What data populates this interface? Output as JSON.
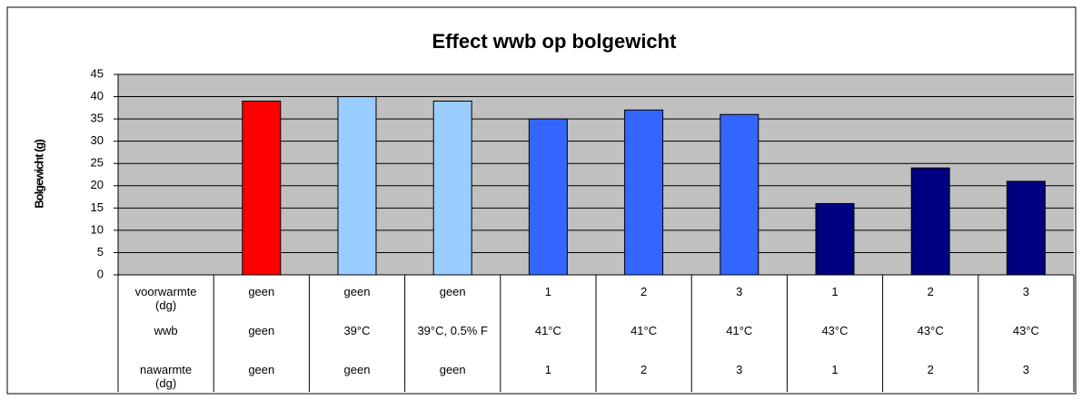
{
  "chart_data": {
    "type": "bar",
    "title": "Effect wwb op bolgewicht",
    "y_label": "Bolgewicht (g)",
    "categories": [
      null,
      null,
      null,
      null,
      null,
      null,
      null,
      null,
      null,
      null
    ],
    "values": [
      null,
      39,
      40,
      39,
      35,
      37,
      36,
      16,
      24,
      21
    ],
    "colors": [
      null,
      "#ff0000",
      "#99ccff",
      "#99ccff",
      "#3366ff",
      "#3366ff",
      "#3366ff",
      "#000080",
      "#000080",
      "#000080"
    ],
    "ylim": [
      0,
      45
    ],
    "yticks": [
      0,
      5,
      10,
      15,
      20,
      25,
      30,
      35,
      40,
      45
    ],
    "grid": true,
    "plot_background": "#c0c0c0"
  },
  "data_table": {
    "rows": [
      {
        "label": "voorwarmte (dg)",
        "cells": [
          "geen",
          "geen",
          "geen",
          "1",
          "2",
          "3",
          "1",
          "2",
          "3"
        ]
      },
      {
        "label": "wwb",
        "cells": [
          "geen",
          "39°C",
          "39°C, 0.5% F",
          "41°C",
          "41°C",
          "41°C",
          "43°C",
          "43°C",
          "43°C"
        ]
      },
      {
        "label": "nawarmte (dg)",
        "cells": [
          "geen",
          "geen",
          "geen",
          "1",
          "2",
          "3",
          "1",
          "2",
          "3"
        ]
      }
    ]
  }
}
